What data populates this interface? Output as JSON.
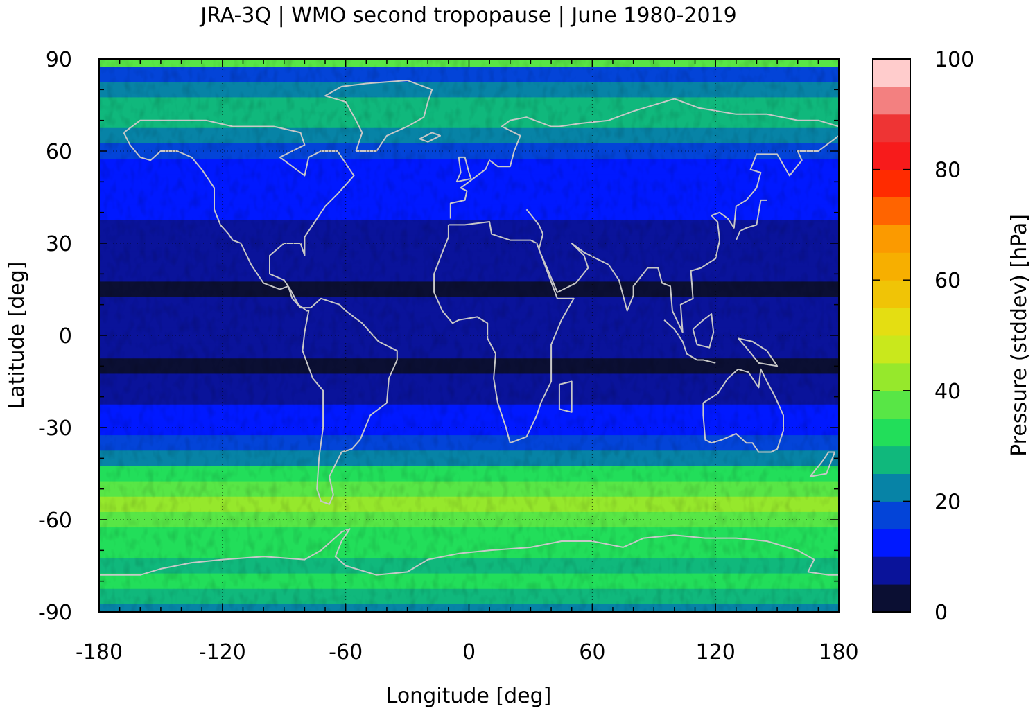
{
  "chart_data": {
    "type": "heatmap",
    "title": "JRA-3Q | WMO second tropopause | June 1980-2019",
    "xlabel": "Longitude [deg]",
    "ylabel": "Latitude [deg]",
    "colorbar_label": "Pressure (stddev) [hPa]",
    "xlim": [
      -180,
      180
    ],
    "ylim": [
      -90,
      90
    ],
    "x_ticks": [
      -180,
      -120,
      -60,
      0,
      60,
      120,
      180
    ],
    "x_tick_labels": [
      "-180",
      "-120",
      "-60",
      "0",
      "60",
      "120",
      "180"
    ],
    "y_ticks": [
      90,
      60,
      30,
      0,
      -30,
      -60,
      -90
    ],
    "y_tick_labels": [
      "90",
      "60",
      "30",
      "0",
      "-30",
      "-60",
      "-90"
    ],
    "colorbar": {
      "range": [
        0,
        100
      ],
      "ticks": [
        0,
        20,
        40,
        60,
        80,
        100
      ],
      "tick_labels": [
        "0",
        "20",
        "40",
        "60",
        "80",
        "100"
      ],
      "level_step": 5,
      "colors": [
        "#0b0f33",
        "#0a139a",
        "#0019ff",
        "#0344d8",
        "#0783a6",
        "#10b87c",
        "#22de5a",
        "#58e646",
        "#96e82c",
        "#c9e81c",
        "#e4de12",
        "#f0c406",
        "#f7af00",
        "#fb9a00",
        "#ff6400",
        "#ff2b00",
        "#f71b1b",
        "#ee3434",
        "#f38080",
        "#ffcccc"
      ]
    },
    "zonal_mean_profile": {
      "lat": [
        90,
        85,
        80,
        75,
        70,
        65,
        60,
        55,
        50,
        45,
        40,
        35,
        30,
        25,
        20,
        15,
        10,
        5,
        0,
        -5,
        -10,
        -15,
        -20,
        -25,
        -30,
        -35,
        -40,
        -45,
        -50,
        -55,
        -60,
        -65,
        -70,
        -75,
        -80,
        -85,
        -90
      ],
      "value": [
        38,
        16,
        20,
        27,
        25,
        22,
        18,
        14,
        12,
        11,
        10,
        8,
        6,
        5,
        5,
        4,
        5,
        6,
        5,
        6,
        4,
        5,
        8,
        10,
        13,
        16,
        22,
        30,
        38,
        42,
        37,
        32,
        30,
        27,
        30,
        26,
        20
      ]
    },
    "grid": true,
    "coastlines": true,
    "colorbar_position": "right"
  }
}
